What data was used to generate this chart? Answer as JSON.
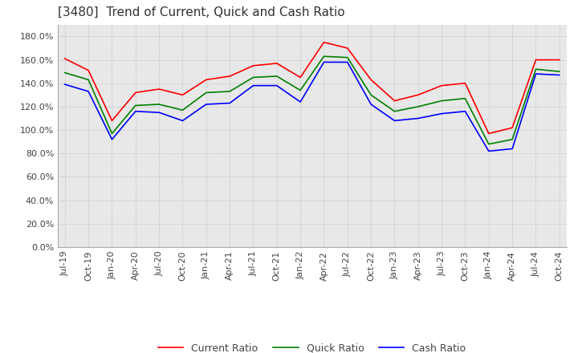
{
  "title": "[3480]  Trend of Current, Quick and Cash Ratio",
  "x_labels": [
    "Jul-19",
    "Oct-19",
    "Jan-20",
    "Apr-20",
    "Jul-20",
    "Oct-20",
    "Jan-21",
    "Apr-21",
    "Jul-21",
    "Oct-21",
    "Jan-22",
    "Apr-22",
    "Jul-22",
    "Oct-22",
    "Jan-23",
    "Apr-23",
    "Jul-23",
    "Oct-23",
    "Jan-24",
    "Apr-24",
    "Jul-24",
    "Oct-24"
  ],
  "current_ratio": [
    161,
    151,
    108,
    132,
    135,
    130,
    143,
    146,
    155,
    157,
    145,
    175,
    170,
    143,
    125,
    130,
    138,
    140,
    97,
    102,
    160,
    160
  ],
  "quick_ratio": [
    149,
    143,
    97,
    121,
    122,
    117,
    132,
    133,
    145,
    146,
    134,
    163,
    162,
    130,
    116,
    120,
    125,
    127,
    88,
    92,
    152,
    150
  ],
  "cash_ratio": [
    139,
    133,
    92,
    116,
    115,
    108,
    122,
    123,
    138,
    138,
    124,
    158,
    158,
    122,
    108,
    110,
    114,
    116,
    82,
    84,
    148,
    147
  ],
  "ylim": [
    0,
    190
  ],
  "yticks": [
    0,
    20,
    40,
    60,
    80,
    100,
    120,
    140,
    160,
    180
  ],
  "current_color": "#ff0000",
  "quick_color": "#008000",
  "cash_color": "#0000ff",
  "bg_color": "#ffffff",
  "plot_bg_color": "#e8e8e8",
  "grid_color": "#aaaaaa",
  "legend_labels": [
    "Current Ratio",
    "Quick Ratio",
    "Cash Ratio"
  ],
  "title_fontsize": 11,
  "tick_fontsize": 8,
  "legend_fontsize": 9
}
